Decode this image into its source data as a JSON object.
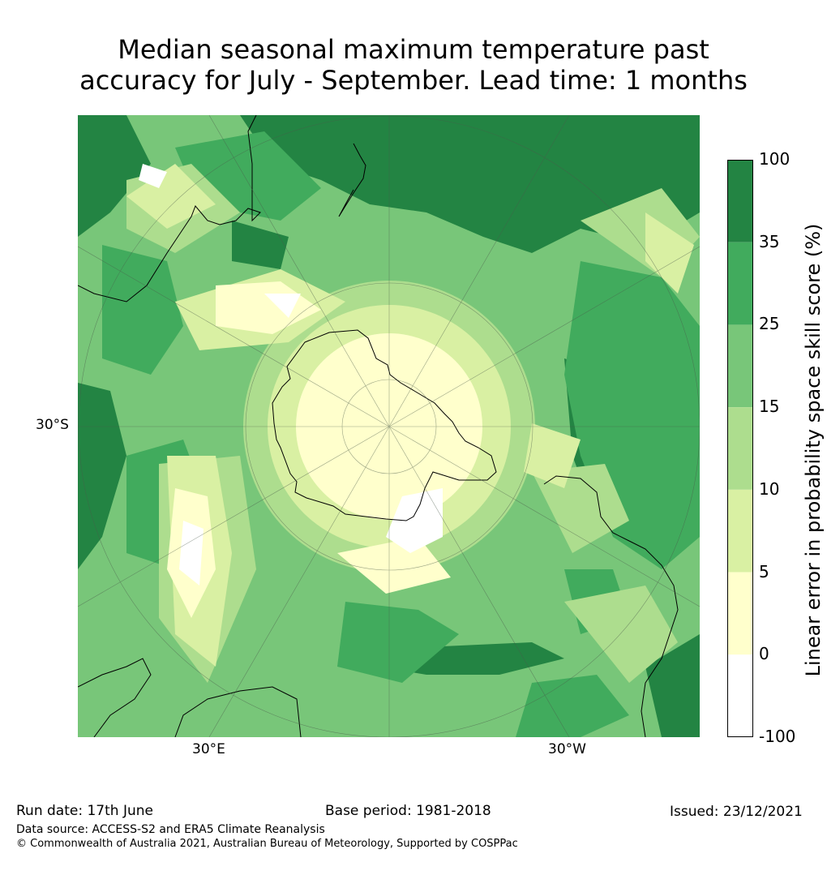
{
  "title": {
    "line1": "Median seasonal maximum temperature past",
    "line2": "accuracy for July - September. Lead time: 1 months"
  },
  "map": {
    "lat_label": "30°S",
    "lon_labels": [
      "30°E",
      "30°W"
    ],
    "projection": "south polar stereographic"
  },
  "colorbar": {
    "title": "Linear error in probability space skill score (%)",
    "ticks": [
      "100",
      "35",
      "25",
      "15",
      "10",
      "5",
      "0",
      "-100"
    ],
    "bins": [
      {
        "range": "35 to 100",
        "color": "#238443"
      },
      {
        "range": "25 to 35",
        "color": "#41ab5d"
      },
      {
        "range": "15 to 25",
        "color": "#78c679"
      },
      {
        "range": "10 to 15",
        "color": "#addd8e"
      },
      {
        "range": "5 to 10",
        "color": "#d9f0a3"
      },
      {
        "range": "0 to 5",
        "color": "#ffffcc"
      },
      {
        "range": "-100 to 0",
        "color": "#ffffff"
      }
    ]
  },
  "footer": {
    "run_date": "Run date: 17th June",
    "base_period": "Base period: 1981-2018",
    "issued": "Issued: 23/12/2021",
    "data_source": "Data source: ACCESS-S2 and ERA5 Climate Reanalysis",
    "copyright": "© Commonwealth of Australia 2021, Australian Bureau of Meteorology, Supported by COSPPac"
  }
}
